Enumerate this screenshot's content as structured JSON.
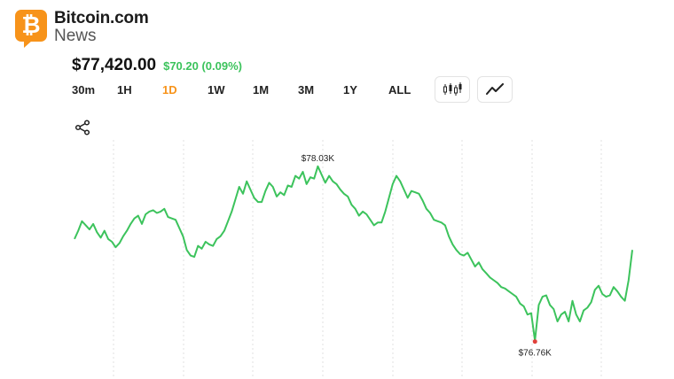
{
  "brand": {
    "badge_glyph": "₿",
    "title": "Bitcoin.com",
    "subtitle": "News",
    "color": "#f7931a"
  },
  "ticker": {
    "price": "$77,420.00",
    "change": "$70.20 (0.09%)",
    "change_color": "#3cc35c"
  },
  "ranges": [
    "30m",
    "1H",
    "1D",
    "1W",
    "1M",
    "3M",
    "1Y",
    "ALL"
  ],
  "active_range": "1D",
  "icons": {
    "candlestick": "candlestick-chart-icon",
    "line": "line-chart-icon",
    "share": "share-icon"
  },
  "chart_data": {
    "type": "line",
    "line_color": "#3cc35c",
    "high": {
      "label": "$78.03K",
      "value": 78030
    },
    "low": {
      "label": "$76.76K",
      "value": 76760
    },
    "ylim": [
      76700,
      78080
    ],
    "grid": "vertical dashed",
    "values": [
      77500,
      77560,
      77630,
      77600,
      77570,
      77610,
      77550,
      77510,
      77560,
      77500,
      77480,
      77440,
      77470,
      77520,
      77560,
      77610,
      77650,
      77670,
      77610,
      77680,
      77700,
      77710,
      77690,
      77700,
      77720,
      77660,
      77650,
      77640,
      77580,
      77520,
      77420,
      77380,
      77370,
      77450,
      77430,
      77480,
      77460,
      77450,
      77500,
      77520,
      77560,
      77630,
      77700,
      77790,
      77880,
      77830,
      77920,
      77860,
      77800,
      77770,
      77770,
      77850,
      77910,
      77880,
      77810,
      77840,
      77820,
      77890,
      77880,
      77960,
      77940,
      77990,
      77900,
      77950,
      77940,
      78030,
      77970,
      77910,
      77960,
      77920,
      77900,
      77860,
      77830,
      77810,
      77750,
      77720,
      77670,
      77700,
      77680,
      77640,
      77600,
      77620,
      77620,
      77700,
      77800,
      77900,
      77960,
      77920,
      77860,
      77800,
      77850,
      77840,
      77830,
      77780,
      77720,
      77690,
      77640,
      77630,
      77620,
      77600,
      77520,
      77460,
      77420,
      77390,
      77380,
      77400,
      77350,
      77300,
      77330,
      77280,
      77250,
      77220,
      77200,
      77180,
      77150,
      77140,
      77120,
      77100,
      77080,
      77030,
      77010,
      76950,
      76960,
      76760,
      77020,
      77080,
      77090,
      77020,
      76990,
      76900,
      76950,
      76970,
      76900,
      77050,
      76950,
      76900,
      76980,
      77000,
      77040,
      77130,
      77160,
      77100,
      77080,
      77090,
      77150,
      77120,
      77080,
      77050,
      77200,
      77420
    ]
  }
}
